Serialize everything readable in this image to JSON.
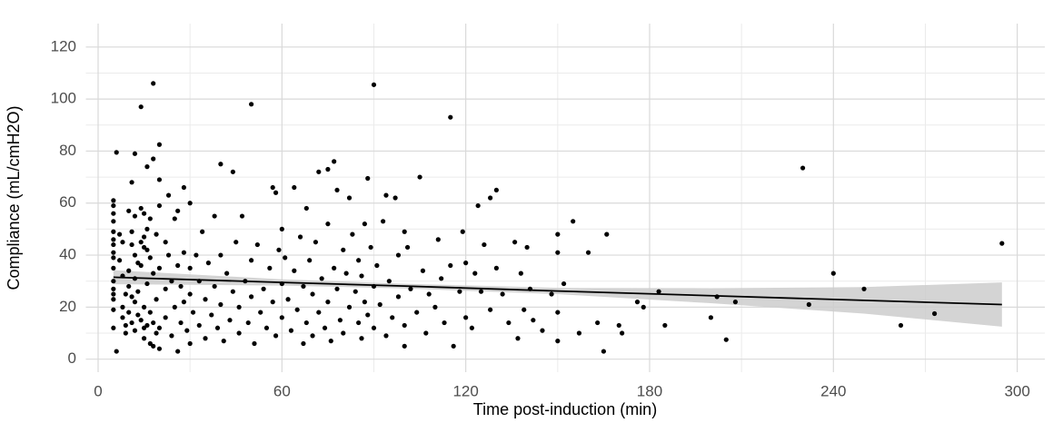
{
  "chart_data": {
    "type": "scatter",
    "x_label": "Time post-induction (min)",
    "y_label": "Compliance (mL/cmH2O)",
    "xlim": [
      -4,
      309
    ],
    "ylim": [
      -5,
      129
    ],
    "xticks": [
      0,
      60,
      120,
      180,
      240,
      300
    ],
    "yticks": [
      0,
      20,
      40,
      60,
      80,
      100,
      120
    ],
    "xticks_minor": [
      30,
      90,
      150,
      210,
      270
    ],
    "yticks_minor": [
      10,
      30,
      50,
      70,
      90,
      110
    ],
    "grid": true,
    "color": "#000000",
    "x": [
      5,
      5,
      5,
      5,
      5,
      5,
      5,
      5,
      5,
      5,
      5,
      5,
      5,
      5,
      5,
      5,
      6,
      6,
      7,
      7,
      8,
      8,
      8,
      8,
      9,
      9,
      9,
      10,
      10,
      10,
      10,
      11,
      11,
      11,
      11,
      11,
      12,
      12,
      12,
      12,
      12,
      12,
      13,
      13,
      13,
      14,
      14,
      14,
      14,
      14,
      15,
      15,
      15,
      15,
      15,
      15,
      16,
      16,
      16,
      16,
      16,
      17,
      17,
      17,
      17,
      18,
      18,
      18,
      18,
      18,
      19,
      19,
      19,
      20,
      20,
      20,
      20,
      20,
      20,
      22,
      22,
      22,
      23,
      23,
      24,
      24,
      25,
      25,
      26,
      26,
      26,
      27,
      27,
      28,
      28,
      28,
      29,
      30,
      30,
      30,
      30,
      31,
      32,
      33,
      33,
      34,
      35,
      35,
      36,
      37,
      38,
      38,
      39,
      40,
      40,
      40,
      41,
      42,
      43,
      44,
      44,
      45,
      46,
      46,
      47,
      48,
      49,
      50,
      50,
      50,
      51,
      52,
      53,
      54,
      55,
      56,
      57,
      57,
      58,
      58,
      59,
      60,
      60,
      60,
      61,
      62,
      63,
      64,
      64,
      65,
      66,
      67,
      67,
      68,
      68,
      69,
      70,
      70,
      71,
      72,
      72,
      73,
      74,
      75,
      75,
      75,
      76,
      77,
      77,
      78,
      78,
      79,
      80,
      80,
      81,
      82,
      82,
      83,
      84,
      85,
      85,
      86,
      86,
      87,
      87,
      88,
      88,
      89,
      90,
      90,
      90,
      91,
      92,
      93,
      94,
      94,
      95,
      96,
      97,
      98,
      98,
      100,
      100,
      100,
      101,
      102,
      104,
      105,
      106,
      107,
      108,
      110,
      111,
      112,
      113,
      115,
      115,
      116,
      118,
      119,
      120,
      120,
      122,
      123,
      124,
      125,
      126,
      128,
      128,
      130,
      130,
      132,
      134,
      136,
      137,
      138,
      139,
      140,
      141,
      142,
      145,
      148,
      150,
      150,
      150,
      150,
      152,
      155,
      157,
      160,
      163,
      165,
      166,
      170,
      171,
      176,
      178,
      183,
      185,
      200,
      202,
      205,
      208,
      230,
      232,
      240,
      250,
      262,
      273,
      295
    ],
    "values": [
      61,
      59,
      56,
      53,
      49,
      46,
      44,
      41,
      39,
      35,
      30,
      27,
      25,
      23,
      19,
      12,
      3,
      79.5,
      48,
      38,
      45,
      32,
      20,
      16,
      25,
      13,
      10,
      57,
      34,
      28,
      18,
      68,
      49,
      44,
      24,
      14,
      79,
      55,
      40,
      31,
      22,
      11,
      37,
      26,
      17,
      97,
      58,
      45,
      36,
      15,
      56,
      47,
      43,
      20,
      12,
      8,
      74,
      50,
      42,
      29,
      13,
      54,
      39,
      18,
      6,
      77,
      106,
      33,
      14,
      5,
      48,
      23,
      10,
      82.5,
      69,
      59,
      35,
      12,
      4,
      45,
      27,
      16,
      63,
      40,
      30,
      9,
      54,
      20,
      57,
      36,
      3,
      28,
      14,
      66,
      41,
      22,
      11,
      60,
      35,
      25,
      6,
      18,
      40,
      30,
      13,
      49,
      23,
      8,
      37,
      17,
      55,
      28,
      12,
      75,
      40,
      21,
      7,
      33,
      15,
      72,
      26,
      45,
      20,
      10,
      55,
      30,
      14,
      98,
      38,
      24,
      6,
      44,
      18,
      27,
      12,
      35,
      66,
      22,
      64,
      9,
      42,
      50,
      29,
      16,
      39,
      23,
      11,
      66,
      34,
      19,
      47,
      28,
      6,
      58,
      14,
      38,
      25,
      9,
      45,
      72,
      18,
      31,
      12,
      73,
      52,
      22,
      7,
      76,
      35,
      65,
      27,
      15,
      42,
      10,
      33,
      62,
      20,
      48,
      26,
      38,
      14,
      32,
      8,
      52,
      22,
      69.5,
      17,
      43,
      105.5,
      28,
      12,
      36,
      21,
      53,
      63,
      9,
      30,
      16,
      62,
      40,
      24,
      49,
      13,
      5,
      43,
      27,
      18,
      70,
      34,
      10,
      25,
      20,
      46,
      31,
      14,
      93,
      36,
      5,
      26,
      49,
      37,
      16,
      12,
      33,
      59,
      26,
      44,
      62,
      19,
      65,
      35,
      25,
      14,
      45,
      8,
      33,
      19,
      43,
      27,
      15,
      11,
      25,
      48,
      41,
      18,
      7,
      29,
      53,
      10,
      41,
      14,
      3,
      48,
      13,
      10,
      22,
      20,
      26,
      13,
      16,
      24,
      7.5,
      22,
      73.5,
      21,
      33,
      27,
      13,
      17.5,
      44.5
    ],
    "fit": {
      "color": "#000000",
      "band_color": "#cccccc",
      "x": [
        5,
        60,
        100,
        150,
        200,
        250,
        295
      ],
      "y": [
        31.5,
        29.5,
        28.1,
        26.2,
        24.4,
        22.6,
        21.0
      ],
      "lower": [
        28.8,
        28.3,
        27.2,
        25.0,
        21.5,
        17.5,
        12.5
      ],
      "upper": [
        34.2,
        30.7,
        29.0,
        27.4,
        27.3,
        27.7,
        29.5
      ]
    }
  }
}
